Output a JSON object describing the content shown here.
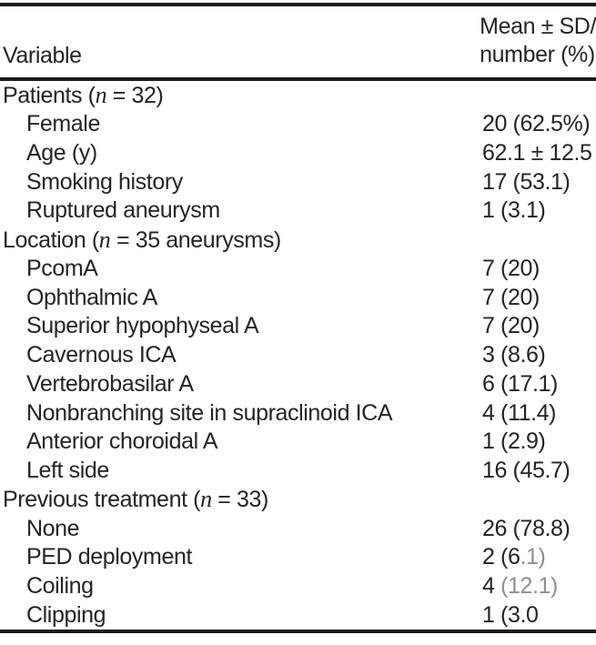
{
  "table": {
    "header": {
      "col1": "Variable",
      "col2_line1": "Mean ± SD/",
      "col2_line2": "number (%)"
    },
    "rows": [
      {
        "indent": false,
        "label_parts": [
          "Patients (",
          {
            "i": "n"
          },
          " = 32)"
        ],
        "value": ""
      },
      {
        "indent": true,
        "label": "Female",
        "value": "20 (62.5%)"
      },
      {
        "indent": true,
        "label": "Age (y)",
        "value": "62.1 ± 12.5"
      },
      {
        "indent": true,
        "label": "Smoking history",
        "value": "17 (53.1)"
      },
      {
        "indent": true,
        "label": "Ruptured aneurysm",
        "value": "1 (3.1)"
      },
      {
        "indent": false,
        "label_parts": [
          "Location (",
          {
            "i": "n"
          },
          " = 35 aneurysms)"
        ],
        "value": ""
      },
      {
        "indent": true,
        "label": "PcomA",
        "value": "7 (20)"
      },
      {
        "indent": true,
        "label": "Ophthalmic A",
        "value": "7 (20)"
      },
      {
        "indent": true,
        "label": "Superior hypophyseal A",
        "value": "7 (20)"
      },
      {
        "indent": true,
        "label": "Cavernous ICA",
        "value": "3 (8.6)"
      },
      {
        "indent": true,
        "label": "Vertebrobasilar A",
        "value": "6 (17.1)"
      },
      {
        "indent": true,
        "label": "Nonbranching site in supraclinoid ICA",
        "value": "4 (11.4)"
      },
      {
        "indent": true,
        "label": "Anterior choroidal A",
        "value": "1 (2.9)"
      },
      {
        "indent": true,
        "label": "Left side",
        "value": "16 (45.7)"
      },
      {
        "indent": false,
        "label_parts": [
          "Previous treatment (",
          {
            "i": "n"
          },
          " = 33)"
        ],
        "value": ""
      },
      {
        "indent": true,
        "label": "None",
        "value": "26 (78.8)"
      },
      {
        "indent": true,
        "label": "PED deployment",
        "value_parts": [
          "2 (6",
          {
            "faded": ".1)"
          }
        ]
      },
      {
        "indent": true,
        "label": "Coiling",
        "value_parts": [
          "4 ",
          {
            "faded": "(12.1)"
          }
        ]
      },
      {
        "indent": true,
        "label": "Clipping",
        "value": "1 (3.0"
      }
    ]
  }
}
